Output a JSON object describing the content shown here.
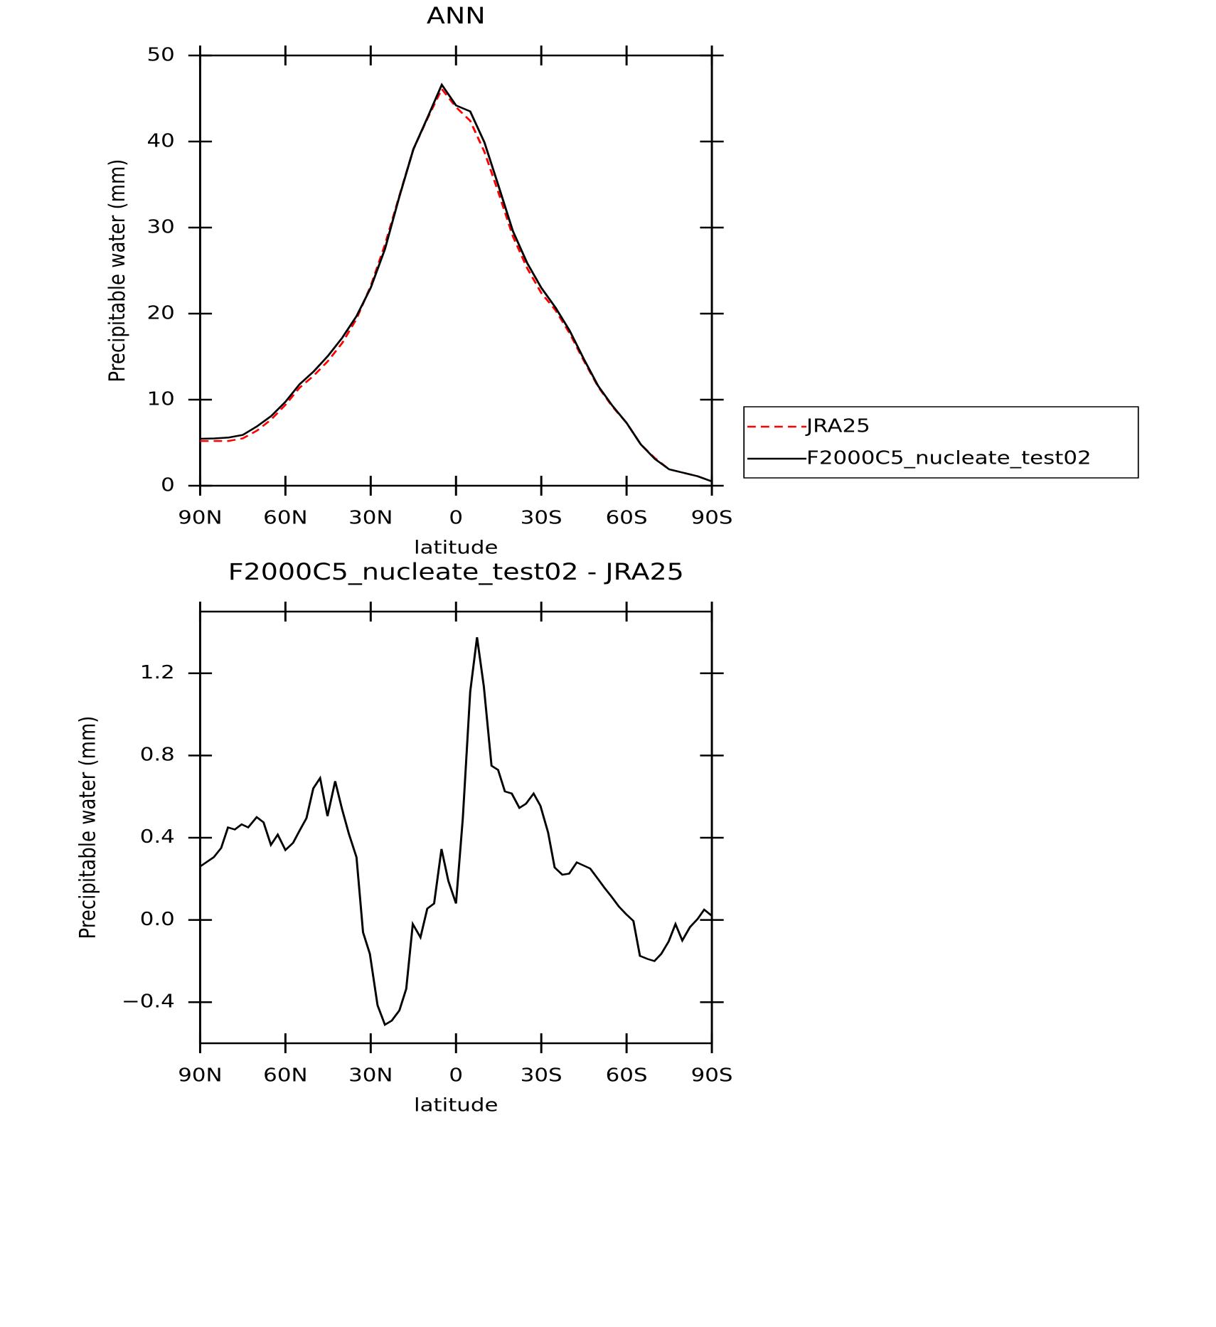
{
  "chart_data": [
    {
      "type": "line",
      "title": "ANN",
      "xlabel": "latitude",
      "ylabel": "Precipitable water (mm)",
      "x": [
        90,
        85,
        80,
        75,
        70,
        65,
        60,
        55,
        50,
        45,
        40,
        35,
        30,
        25,
        20,
        15,
        10,
        5,
        0,
        -5,
        -10,
        -15,
        -20,
        -25,
        -30,
        -35,
        -40,
        -45,
        -50,
        -55,
        -60,
        -65,
        -70,
        -75,
        -80,
        -85,
        -90
      ],
      "series": [
        {
          "name": "JRA25",
          "color": "#ff0000",
          "linestyle": "dashed",
          "values": [
            5.2,
            5.2,
            5.2,
            5.5,
            6.4,
            7.7,
            9.4,
            11.4,
            12.8,
            14.5,
            16.6,
            19.4,
            23.2,
            28.0,
            33.6,
            39.1,
            42.7,
            46.1,
            44.0,
            42.4,
            38.8,
            34.0,
            29.0,
            25.3,
            22.4,
            20.4,
            17.7,
            14.5,
            11.5,
            9.2,
            7.3,
            4.8,
            3.2,
            1.9,
            1.5,
            1.1,
            0.5
          ]
        },
        {
          "name": "F2000C5_nucleate_test02",
          "color": "#000000",
          "linestyle": "solid",
          "values": [
            5.45,
            5.5,
            5.6,
            5.9,
            6.9,
            8.1,
            9.75,
            11.8,
            13.3,
            15.1,
            17.2,
            19.7,
            23.0,
            27.5,
            33.5,
            39.1,
            42.8,
            46.6,
            44.2,
            43.5,
            39.9,
            34.8,
            29.6,
            25.9,
            23.0,
            20.7,
            18.0,
            14.7,
            11.6,
            9.3,
            7.3,
            4.8,
            3.1,
            1.9,
            1.5,
            1.1,
            0.5
          ]
        }
      ],
      "xlim": [
        90,
        -90
      ],
      "xticks": [
        {
          "value": 90,
          "label": "90N"
        },
        {
          "value": 60,
          "label": "60N"
        },
        {
          "value": 30,
          "label": "30N"
        },
        0,
        {
          "value": -30,
          "label": "30S"
        },
        {
          "value": -60,
          "label": "60S"
        },
        {
          "value": -90,
          "label": "90S"
        }
      ],
      "ylim": [
        0,
        50
      ],
      "yticks": [
        0,
        10,
        20,
        30,
        40,
        50
      ],
      "grid": false,
      "legend": "right"
    },
    {
      "type": "line",
      "title": "F2000C5_nucleate_test02 - JRA25",
      "xlabel": "latitude",
      "ylabel": "Precipitable water (mm)",
      "x": [
        90,
        85.2,
        82.6,
        80.2,
        77.8,
        75.4,
        73.1,
        70.1,
        67.7,
        65.1,
        62.7,
        60,
        57.3,
        55,
        52.6,
        50.2,
        47.8,
        45.2,
        42.5,
        40.1,
        37.7,
        35,
        32.7,
        30.3,
        27.6,
        25,
        22.6,
        19.9,
        17.5,
        15.2,
        12.5,
        10.1,
        7.7,
        5.1,
        2.7,
        0,
        -2.4,
        -5,
        -7.4,
        -9.8,
        -12.5,
        -14.8,
        -17.2,
        -19.6,
        -22.3,
        -24.6,
        -27.3,
        -29.7,
        -32.4,
        -34.7,
        -37.4,
        -39.8,
        -42.5,
        -44.8,
        -47.2,
        -49.9,
        -52.3,
        -54.6,
        -57.3,
        -59.7,
        -62.4,
        -64.7,
        -67.4,
        -69.8,
        -72.2,
        -74.8,
        -77.2,
        -79.6,
        -82.3,
        -85,
        -87.3,
        -90
      ],
      "series": [
        {
          "name": null,
          "color": "#000000",
          "linestyle": "solid",
          "values": [
            0.26,
            0.305,
            0.35,
            0.45,
            0.44,
            0.465,
            0.45,
            0.5,
            0.475,
            0.365,
            0.415,
            0.34,
            0.375,
            0.435,
            0.495,
            0.64,
            0.69,
            0.505,
            0.675,
            0.54,
            0.42,
            0.305,
            -0.06,
            -0.165,
            -0.415,
            -0.51,
            -0.49,
            -0.44,
            -0.335,
            -0.02,
            -0.085,
            0.055,
            0.08,
            0.345,
            0.19,
            0.08,
            0.495,
            1.11,
            1.375,
            1.135,
            0.75,
            0.73,
            0.625,
            0.615,
            0.545,
            0.565,
            0.615,
            0.555,
            0.425,
            0.255,
            0.22,
            0.225,
            0.28,
            0.265,
            0.25,
            0.2,
            0.155,
            0.115,
            0.065,
            0.03,
            -0.005,
            -0.175,
            -0.19,
            -0.2,
            -0.165,
            -0.105,
            -0.02,
            -0.1,
            -0.035,
            0.005,
            0.05,
            0.02
          ]
        }
      ],
      "xlim": [
        90,
        -90
      ],
      "xticks": [
        {
          "value": 90,
          "label": "90N"
        },
        {
          "value": 60,
          "label": "60N"
        },
        {
          "value": 30,
          "label": "30N"
        },
        0,
        {
          "value": -30,
          "label": "30S"
        },
        {
          "value": -60,
          "label": "60S"
        },
        {
          "value": -90,
          "label": "90S"
        }
      ],
      "ylim": [
        -0.6,
        1.5
      ],
      "yticks": [
        {
          "value": -0.4,
          "label": "−0.4"
        },
        {
          "value": 0,
          "label": "0.0"
        },
        0.4,
        0.8,
        1.2
      ],
      "grid": false
    }
  ]
}
